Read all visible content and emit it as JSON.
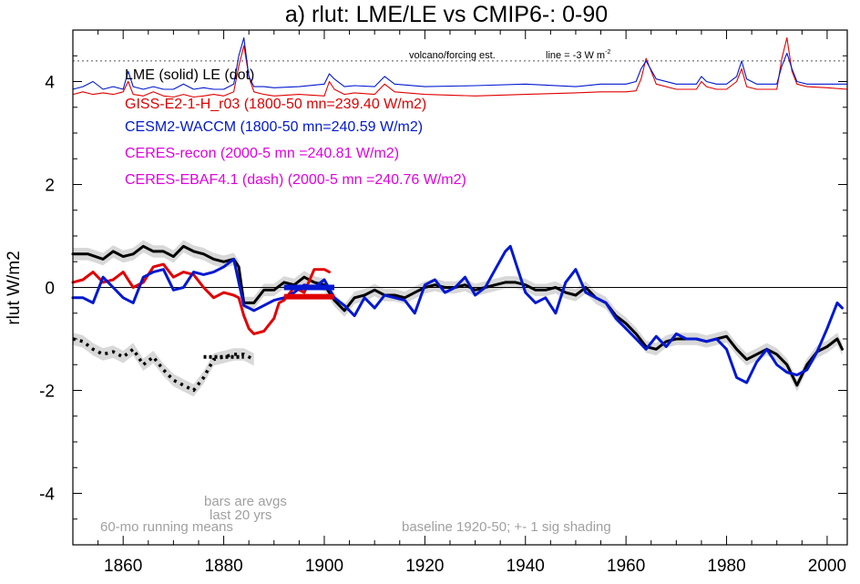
{
  "chart_data": {
    "type": "line",
    "title": "a) rlut: LME/LE vs CMIP6-: 0-90",
    "ylabel": "rlut W/m2",
    "xlabel": "",
    "xlim": [
      1850,
      2004
    ],
    "ylim": [
      -5,
      5
    ],
    "x_ticks": [
      1860,
      1880,
      1900,
      1920,
      1940,
      1960,
      1980,
      2000
    ],
    "y_ticks": [
      4,
      2,
      0,
      -2,
      -4
    ],
    "grid": false,
    "legend_entries": [
      {
        "text": "LME (solid)   LE (dot)",
        "color": "#000000"
      },
      {
        "text": "GISS-E2-1-H_r03 (1800-50 mn=239.40 W/m2)",
        "color": "#e00000"
      },
      {
        "text": "CESM2-WACCM (1800-50 mn=240.59 W/m2)",
        "color": "#0018d0"
      },
      {
        "text": "CERES-recon (2000-5 mn =240.81 W/m2)",
        "color": "#e000e0"
      },
      {
        "text": "CERES-EBAF4.1 (dash) (2000-5 mn =240.76 W/m2)",
        "color": "#e000e0"
      }
    ],
    "annotations": {
      "volcano": "volcano/forcing est.",
      "line_note": "line = -3 W m",
      "line_note_sup": "-2",
      "bars_note_1": "bars are avgs",
      "bars_note_2": "last 20 yrs",
      "running": "60-mo running means",
      "baseline": "baseline 1920-50; +- 1 sig shading"
    },
    "reference_line_y": 4.4,
    "series": [
      {
        "name": "LME (solid)",
        "color": "#000000",
        "x": [
          1850,
          1853,
          1856,
          1858,
          1860,
          1862,
          1864,
          1866,
          1868,
          1870,
          1872,
          1874,
          1876,
          1878,
          1880,
          1882,
          1883,
          1884,
          1886,
          1888,
          1890,
          1892,
          1894,
          1896,
          1898,
          1900,
          1902,
          1904,
          1906,
          1908,
          1910,
          1912,
          1914,
          1916,
          1918,
          1920,
          1922,
          1924,
          1926,
          1928,
          1930,
          1932,
          1934,
          1936,
          1938,
          1940,
          1942,
          1944,
          1946,
          1948,
          1950,
          1952,
          1954,
          1956,
          1958,
          1960,
          1962,
          1964,
          1966,
          1968,
          1970,
          1972,
          1974,
          1976,
          1978,
          1980,
          1982,
          1984,
          1986,
          1988,
          1990,
          1992,
          1994,
          1996,
          1998,
          2000,
          2002,
          2003
        ],
        "values": [
          0.65,
          0.65,
          0.55,
          0.7,
          0.6,
          0.65,
          0.8,
          0.7,
          0.7,
          0.6,
          0.8,
          0.7,
          0.65,
          0.55,
          0.5,
          0.55,
          0.4,
          -0.3,
          -0.3,
          -0.05,
          -0.05,
          0.1,
          0.05,
          0.2,
          0.1,
          0.05,
          -0.25,
          -0.45,
          -0.2,
          -0.15,
          -0.05,
          -0.15,
          -0.15,
          -0.2,
          -0.1,
          0.0,
          0.05,
          0.0,
          0.0,
          0.05,
          -0.05,
          0.0,
          0.05,
          0.1,
          0.1,
          0.05,
          -0.05,
          -0.05,
          0.0,
          -0.1,
          -0.15,
          0.0,
          -0.2,
          -0.3,
          -0.55,
          -0.7,
          -0.9,
          -1.15,
          -1.2,
          -1.05,
          -1.0,
          -1.0,
          -1.0,
          -1.05,
          -1.0,
          -0.95,
          -1.2,
          -1.4,
          -1.3,
          -1.2,
          -1.3,
          -1.5,
          -1.9,
          -1.5,
          -1.25,
          -1.15,
          -1.0,
          -1.2
        ]
      },
      {
        "name": "GISS-E2-1-H_r03",
        "color": "#e00000",
        "x": [
          1850,
          1852,
          1854,
          1856,
          1858,
          1860,
          1862,
          1864,
          1866,
          1868,
          1870,
          1872,
          1874,
          1876,
          1878,
          1880,
          1882,
          1883,
          1884,
          1885,
          1886,
          1888,
          1890,
          1891,
          1892,
          1894,
          1896,
          1898,
          1900,
          1901
        ],
        "values": [
          0.1,
          0.15,
          0.3,
          0.1,
          0.15,
          0.3,
          0.0,
          0.1,
          0.4,
          0.45,
          0.2,
          0.3,
          0.25,
          0.0,
          -0.2,
          -0.1,
          -0.15,
          -0.2,
          -0.55,
          -0.8,
          -0.9,
          -0.85,
          -0.6,
          -0.3,
          -0.25,
          0.0,
          -0.1,
          0.35,
          0.35,
          0.3
        ]
      },
      {
        "name": "CESM2-WACCM",
        "color": "#0018d0",
        "x": [
          1850,
          1852,
          1854,
          1856,
          1858,
          1860,
          1862,
          1864,
          1866,
          1868,
          1870,
          1872,
          1874,
          1876,
          1878,
          1880,
          1882,
          1883,
          1884,
          1885,
          1886,
          1888,
          1890,
          1892,
          1894,
          1896,
          1898,
          1900,
          1902,
          1904,
          1906,
          1908,
          1910,
          1912,
          1914,
          1916,
          1918,
          1920,
          1922,
          1924,
          1926,
          1928,
          1930,
          1932,
          1934,
          1936,
          1937,
          1938,
          1940,
          1942,
          1944,
          1946,
          1948,
          1950,
          1952,
          1954,
          1956,
          1958,
          1960,
          1962,
          1964,
          1966,
          1968,
          1970,
          1972,
          1974,
          1976,
          1978,
          1980,
          1982,
          1984,
          1986,
          1988,
          1990,
          1992,
          1994,
          1996,
          1998,
          2000,
          2002,
          2003
        ],
        "values": [
          -0.2,
          -0.2,
          -0.3,
          0.2,
          0.0,
          -0.2,
          -0.3,
          0.2,
          0.3,
          0.35,
          -0.05,
          0.0,
          0.3,
          0.25,
          0.3,
          0.4,
          0.55,
          0.1,
          -0.35,
          -0.4,
          -0.45,
          -0.35,
          -0.25,
          -0.2,
          -0.1,
          0.05,
          0.0,
          0.15,
          -0.2,
          -0.35,
          -0.55,
          -0.2,
          -0.4,
          -0.15,
          -0.2,
          -0.25,
          -0.5,
          0.05,
          0.15,
          -0.1,
          0.0,
          0.2,
          -0.15,
          0.0,
          0.35,
          0.7,
          0.8,
          0.5,
          -0.1,
          -0.3,
          -0.2,
          -0.5,
          0.1,
          0.35,
          -0.1,
          -0.2,
          -0.3,
          -0.6,
          -0.8,
          -1.0,
          -1.2,
          -0.95,
          -1.15,
          -0.9,
          -1.0,
          -1.0,
          -1.05,
          -1.0,
          -1.2,
          -1.75,
          -1.85,
          -1.45,
          -1.2,
          -1.5,
          -1.65,
          -1.7,
          -1.6,
          -1.25,
          -0.8,
          -0.3,
          -0.4
        ]
      },
      {
        "name": "LE (dot)",
        "color": "#000000",
        "x": [
          1850,
          1852,
          1854,
          1856,
          1858,
          1860,
          1862,
          1864,
          1866,
          1868,
          1870,
          1872,
          1874,
          1876,
          1878,
          1880,
          1882,
          1884,
          1886
        ],
        "values": [
          -1.0,
          -1.05,
          -1.2,
          -1.3,
          -1.25,
          -1.35,
          -1.2,
          -1.5,
          -1.35,
          -1.6,
          -1.8,
          -1.9,
          -2.0,
          -1.75,
          -1.4,
          -1.35,
          -1.3,
          -1.3,
          -1.4
        ]
      },
      {
        "name": "GISS-E2-1-H_r03 forcing",
        "color": "#e00000",
        "x": [
          1850,
          1852,
          1854,
          1856,
          1858,
          1860,
          1861,
          1862,
          1864,
          1866,
          1868,
          1870,
          1872,
          1874,
          1876,
          1878,
          1880,
          1882,
          1883,
          1884,
          1885,
          1886,
          1888,
          1890,
          1895,
          1900,
          1901,
          1902,
          1904,
          1906,
          1910,
          1912,
          1914,
          1920,
          1930,
          1940,
          1950,
          1955,
          1960,
          1962,
          1963,
          1964,
          1966,
          1970,
          1974,
          1975,
          1976,
          1978,
          1980,
          1982,
          1983,
          1984,
          1986,
          1990,
          1991,
          1992,
          1993,
          1994,
          1996,
          2000,
          2004
        ],
        "values": [
          3.75,
          3.8,
          3.75,
          3.78,
          3.75,
          3.8,
          4.0,
          3.75,
          3.72,
          3.8,
          3.72,
          3.7,
          3.75,
          3.7,
          3.72,
          3.75,
          3.72,
          3.8,
          4.3,
          4.7,
          4.1,
          3.8,
          3.75,
          3.72,
          3.75,
          3.72,
          4.0,
          3.85,
          3.75,
          3.78,
          3.75,
          3.95,
          3.8,
          3.75,
          3.72,
          3.75,
          3.78,
          3.8,
          3.8,
          3.82,
          4.05,
          4.45,
          3.95,
          3.85,
          3.85,
          4.0,
          3.9,
          3.85,
          3.85,
          4.0,
          4.25,
          3.9,
          3.85,
          3.85,
          4.45,
          4.85,
          4.2,
          3.95,
          3.9,
          3.88,
          3.85
        ]
      },
      {
        "name": "CESM2-WACCM forcing",
        "color": "#0018d0",
        "x": [
          1850,
          1852,
          1854,
          1856,
          1858,
          1860,
          1861,
          1862,
          1864,
          1866,
          1868,
          1870,
          1872,
          1874,
          1876,
          1878,
          1880,
          1882,
          1883,
          1884,
          1885,
          1886,
          1888,
          1890,
          1895,
          1900,
          1901,
          1902,
          1904,
          1906,
          1910,
          1912,
          1914,
          1920,
          1930,
          1940,
          1950,
          1955,
          1960,
          1962,
          1963,
          1964,
          1966,
          1970,
          1974,
          1975,
          1976,
          1978,
          1980,
          1982,
          1983,
          1984,
          1986,
          1990,
          1991,
          1992,
          1993,
          1994,
          1996,
          2000,
          2004
        ],
        "values": [
          3.85,
          3.9,
          4.0,
          3.85,
          3.9,
          3.85,
          4.2,
          3.9,
          3.85,
          3.9,
          3.85,
          3.85,
          3.95,
          3.85,
          3.88,
          3.85,
          3.85,
          3.95,
          4.5,
          4.85,
          4.1,
          3.9,
          3.9,
          3.88,
          3.9,
          3.95,
          4.15,
          4.05,
          3.9,
          3.92,
          3.9,
          4.1,
          3.95,
          3.9,
          3.92,
          3.95,
          3.9,
          3.95,
          3.95,
          4.0,
          4.25,
          4.4,
          4.05,
          3.95,
          3.95,
          4.1,
          4.0,
          3.95,
          3.95,
          4.1,
          4.4,
          4.05,
          3.95,
          3.95,
          4.3,
          4.55,
          4.25,
          4.0,
          3.95,
          3.95,
          3.95
        ]
      }
    ],
    "bars": [
      {
        "name": "LME last 20 yrs",
        "color": "#000000",
        "x": [
          1892,
          1902
        ],
        "y": 0.0
      },
      {
        "name": "CESM2-WACCM last 20 yrs",
        "color": "#0018d0",
        "x": [
          1892,
          1902
        ],
        "y": 0.0
      },
      {
        "name": "GISS-E2-1-H_r03 last 20 yrs",
        "color": "#e00000",
        "x": [
          1892,
          1902
        ],
        "y": -0.18
      }
    ]
  }
}
